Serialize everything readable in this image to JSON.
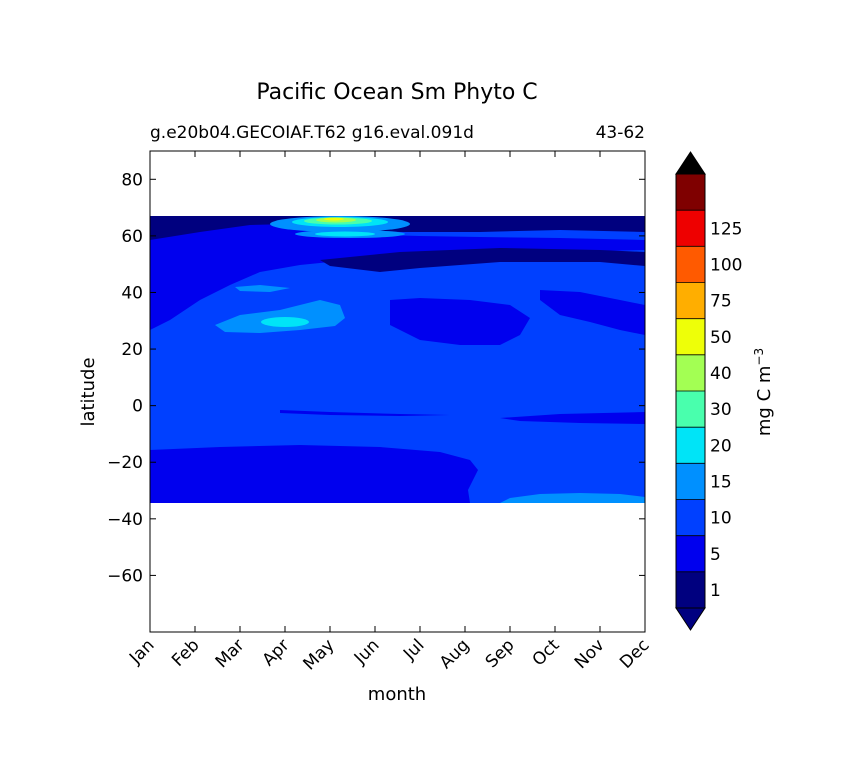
{
  "chart_data": {
    "type": "heatmap",
    "title": "Pacific Ocean Sm Phyto C",
    "subtitle_left": "g.e20b04.GECOIAF.T62 g16.eval.091d",
    "subtitle_right": "43-62",
    "xlabel": "month",
    "ylabel": "latitude",
    "x_ticks": [
      "Jan",
      "Feb",
      "Mar",
      "Apr",
      "May",
      "Jun",
      "Jul",
      "Aug",
      "Sep",
      "Oct",
      "Nov",
      "Dec"
    ],
    "y_ticks": [
      80,
      60,
      40,
      20,
      0,
      -20,
      -40,
      -60
    ],
    "ylim": [
      -80,
      90
    ],
    "data_lat_range": [
      -34,
      67
    ],
    "grid": false,
    "legend": "colorbar-right",
    "colorbar": {
      "label": "mg C m",
      "label_superscript": "−3",
      "tick_labels": [
        "1",
        "5",
        "10",
        "15",
        "20",
        "30",
        "40",
        "50",
        "75",
        "100",
        "125"
      ],
      "colors": [
        "#00007f",
        "#0000ee",
        "#0040ff",
        "#0090ff",
        "#00e4f7",
        "#49ffad",
        "#a3ff53",
        "#eeff08",
        "#ffae00",
        "#ff5a00",
        "#ee0000",
        "#7f0000"
      ],
      "under_color": "#000080",
      "over_color": "#000000"
    }
  }
}
